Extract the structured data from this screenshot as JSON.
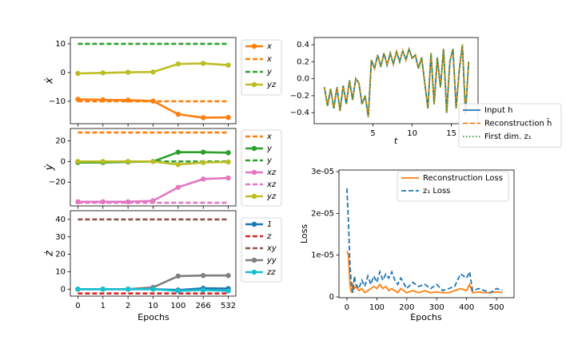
{
  "chart_data": [
    {
      "type": "line",
      "categories": [
        "0",
        "1",
        "2",
        "10",
        "100",
        "266",
        "532"
      ],
      "xlabel": "Epochs",
      "panels": [
        {
          "ylabel": "ẋ",
          "ylim": [
            -17.8,
            12.2
          ],
          "yticks": [
            {
              "value": -10,
              "label": "−10"
            },
            0,
            10
          ],
          "series": [
            {
              "name": "x",
              "color": "#ff7f0e",
              "linestyle": "solid",
              "marker": true,
              "values": [
                -9.3,
                -9.5,
                -9.6,
                -9.9,
                -14.5,
                -15.7,
                -15.6
              ]
            },
            {
              "name": "x",
              "color": "#ff7f0e",
              "linestyle": "dashed",
              "marker": false,
              "values": [
                -10,
                -10,
                -10,
                -10,
                -10,
                -10,
                -10
              ]
            },
            {
              "name": "y",
              "color": "#2ca02c",
              "linestyle": "dashed",
              "marker": false,
              "values": [
                10,
                10,
                10,
                10,
                10,
                10,
                10
              ]
            },
            {
              "name": "yz",
              "color": "#bcbd22",
              "linestyle": "solid",
              "marker": true,
              "values": [
                -0.3,
                -0.1,
                0.1,
                0.2,
                3,
                3.2,
                2.6
              ]
            }
          ]
        },
        {
          "ylabel": "ẏ",
          "ylim": [
            -43,
            31.9
          ],
          "yticks": [
            {
              "value": -20,
              "label": "−20"
            },
            0,
            20
          ],
          "series": [
            {
              "name": "x",
              "color": "#ff7f0e",
              "linestyle": "dashed",
              "marker": false,
              "values": [
                28,
                28,
                28,
                28,
                28,
                28,
                28
              ]
            },
            {
              "name": "y",
              "color": "#2ca02c",
              "linestyle": "solid",
              "marker": true,
              "values": [
                -1,
                -1,
                -0.5,
                0,
                9,
                9,
                8.5
              ]
            },
            {
              "name": "y",
              "color": "#2ca02c",
              "linestyle": "dashed",
              "marker": false,
              "values": [
                0,
                0,
                0,
                0,
                0,
                0,
                0
              ]
            },
            {
              "name": "xz",
              "color": "#e377c2",
              "linestyle": "solid",
              "marker": true,
              "values": [
                -39,
                -39,
                -39,
                -38,
                -25,
                -17,
                -16
              ]
            },
            {
              "name": "xz",
              "color": "#e377c2",
              "linestyle": "dashed",
              "marker": false,
              "values": [
                -40,
                -40,
                -40,
                -40,
                -40,
                -40,
                -40
              ]
            },
            {
              "name": "yz",
              "color": "#bcbd22",
              "linestyle": "solid",
              "marker": true,
              "values": [
                0,
                0,
                0,
                0,
                -3,
                -1,
                -0.5
              ]
            }
          ]
        },
        {
          "ylabel": "ż",
          "ylim": [
            -4,
            45
          ],
          "yticks": [
            0,
            10,
            20,
            30,
            40
          ],
          "series": [
            {
              "name": "1",
              "color": "#1f77b4",
              "linestyle": "solid",
              "marker": true,
              "values": [
                0,
                0,
                0,
                0,
                -0.5,
                0.5,
                0.3
              ]
            },
            {
              "name": "z",
              "color": "#d62728",
              "linestyle": "dashed",
              "marker": false,
              "values": [
                -2.5,
                -2.5,
                -2.5,
                -2.5,
                -2.5,
                -2.5,
                -2.5
              ]
            },
            {
              "name": "xy",
              "color": "#8c564b",
              "linestyle": "dashed",
              "marker": false,
              "values": [
                40,
                40,
                40,
                40,
                40,
                40,
                40
              ]
            },
            {
              "name": "yy",
              "color": "#7f7f7f",
              "linestyle": "solid",
              "marker": true,
              "values": [
                0,
                0,
                0,
                1,
                7.5,
                7.8,
                7.8
              ]
            },
            {
              "name": "zz",
              "color": "#17becf",
              "linestyle": "solid",
              "marker": true,
              "values": [
                0,
                0,
                0,
                0,
                -1,
                -0.5,
                -1
              ]
            }
          ]
        }
      ]
    },
    {
      "type": "line",
      "xlabel": "t",
      "xlim": [
        -2.5,
        18.4
      ],
      "xticks": [
        5,
        10,
        15
      ],
      "ylim": [
        -0.53,
        0.485
      ],
      "yticks": [
        {
          "value": -0.4,
          "label": "−0.4"
        },
        {
          "value": -0.2,
          "label": "−0.2"
        },
        {
          "value": 0,
          "label": "0.0"
        },
        0.2,
        0.4
      ],
      "x": [
        -1.2,
        -0.8,
        -0.4,
        0,
        0.4,
        0.8,
        1.2,
        1.6,
        2,
        2.4,
        2.8,
        3.2,
        3.6,
        4,
        4.4,
        4.8,
        5.2,
        5.6,
        6,
        6.4,
        6.8,
        7.2,
        7.6,
        8,
        8.4,
        8.8,
        9.2,
        9.6,
        10,
        10.4,
        10.8,
        11.2,
        11.6,
        12,
        12.4,
        12.8,
        13.2,
        13.6,
        14,
        14.4,
        14.8,
        15.2,
        15.6,
        16,
        16.4,
        16.8,
        17.2
      ],
      "series": [
        {
          "name": "Input h",
          "color": "#1f77b4",
          "linestyle": "solid",
          "marker": false,
          "values": [
            -0.1,
            -0.32,
            -0.12,
            -0.35,
            -0.1,
            -0.38,
            -0.08,
            -0.3,
            -0.02,
            -0.25,
            0.0,
            -0.05,
            -0.3,
            -0.2,
            -0.45,
            0.22,
            0.12,
            0.28,
            0.14,
            0.3,
            0.16,
            0.3,
            0.17,
            0.32,
            0.2,
            0.33,
            0.22,
            0.35,
            0.24,
            0.28,
            0.12,
            0.25,
            -0.05,
            -0.35,
            0.3,
            -0.3,
            0.25,
            -0.1,
            0.35,
            -0.4,
            0.2,
            0.35,
            -0.35,
            0.1,
            0.4,
            -0.42,
            0.2
          ]
        },
        {
          "name": "Reconstruction h̄",
          "color": "#ff7f0e",
          "linestyle": "dashed",
          "marker": false,
          "values": [
            -0.1,
            -0.32,
            -0.12,
            -0.35,
            -0.1,
            -0.38,
            -0.08,
            -0.3,
            -0.02,
            -0.25,
            0.0,
            -0.05,
            -0.3,
            -0.2,
            -0.45,
            0.22,
            0.12,
            0.28,
            0.14,
            0.3,
            0.16,
            0.3,
            0.17,
            0.32,
            0.2,
            0.33,
            0.22,
            0.35,
            0.24,
            0.28,
            0.12,
            0.25,
            -0.05,
            -0.35,
            0.3,
            -0.3,
            0.25,
            -0.1,
            0.35,
            -0.4,
            0.2,
            0.35,
            -0.35,
            0.1,
            0.4,
            -0.42,
            0.2
          ]
        },
        {
          "name": "First dim. z₁",
          "color": "#2ca02c",
          "linestyle": "dotted",
          "marker": false,
          "values": [
            -0.1,
            -0.32,
            -0.12,
            -0.35,
            -0.1,
            -0.38,
            -0.08,
            -0.3,
            -0.02,
            -0.25,
            0.0,
            -0.05,
            -0.3,
            -0.2,
            -0.45,
            0.22,
            0.12,
            0.28,
            0.14,
            0.3,
            0.16,
            0.3,
            0.17,
            0.32,
            0.2,
            0.33,
            0.22,
            0.35,
            0.24,
            0.28,
            0.12,
            0.25,
            -0.05,
            -0.35,
            0.3,
            -0.3,
            0.25,
            -0.1,
            0.35,
            -0.4,
            0.2,
            0.35,
            -0.35,
            0.1,
            0.4,
            -0.42,
            0.2
          ]
        }
      ]
    },
    {
      "type": "line",
      "xlabel": "Epochs",
      "ylabel": "Loss",
      "xlim": [
        -26.6,
        558.6
      ],
      "xticks": [
        0,
        100,
        200,
        300,
        400,
        500
      ],
      "ylim": [
        -1.9e-07,
        3.04e-05
      ],
      "yticks": [
        0,
        {
          "value": 1e-05,
          "label": "1e-05"
        },
        {
          "value": 2e-05,
          "label": "2e-05"
        },
        {
          "value": 3e-05,
          "label": "3e-05"
        }
      ],
      "x": [
        0,
        5,
        10,
        15,
        20,
        25,
        30,
        40,
        50,
        60,
        70,
        80,
        90,
        100,
        110,
        120,
        130,
        140,
        150,
        160,
        170,
        180,
        200,
        220,
        240,
        260,
        280,
        300,
        320,
        340,
        360,
        380,
        400,
        410,
        420,
        440,
        460,
        480,
        500,
        520
      ],
      "series": [
        {
          "name": "Reconstruction Loss",
          "color": "#ff7f0e",
          "linestyle": "solid",
          "marker": false,
          "values": [
            1.1e-05,
            1e-05,
            3e-06,
            1e-06,
            3e-06,
            2e-06,
            2.5e-06,
            1.5e-06,
            2e-06,
            1e-06,
            1.5e-06,
            2e-06,
            2.5e-06,
            2e-06,
            3e-06,
            2e-06,
            2.5e-06,
            1.5e-06,
            2e-06,
            1.5e-06,
            1e-06,
            2e-06,
            1e-06,
            1.5e-06,
            1e-06,
            1.5e-06,
            1e-06,
            1.2e-06,
            1e-06,
            1e-06,
            1.5e-06,
            2e-06,
            1.5e-06,
            3e-06,
            1e-06,
            1.2e-06,
            1e-06,
            1e-06,
            1.2e-06,
            1e-06
          ]
        },
        {
          "name": "z₁ Loss",
          "color": "#1f77b4",
          "linestyle": "dashed",
          "marker": false,
          "values": [
            2.6e-05,
            1.8e-05,
            8e-06,
            3e-06,
            1e-06,
            5e-06,
            3e-06,
            2e-06,
            4e-06,
            2.5e-06,
            5e-06,
            3e-06,
            5e-06,
            3.5e-06,
            6e-06,
            4e-06,
            5.5e-06,
            4.5e-06,
            6e-06,
            4e-06,
            3e-06,
            4.5e-06,
            2e-06,
            3.5e-06,
            2.5e-06,
            3e-06,
            2e-06,
            3e-06,
            1.5e-06,
            2e-06,
            2.5e-06,
            5.5e-06,
            4.5e-06,
            6e-06,
            1.5e-06,
            2e-06,
            1.5e-06,
            1e-06,
            2e-06,
            1.5e-06
          ]
        }
      ]
    }
  ]
}
